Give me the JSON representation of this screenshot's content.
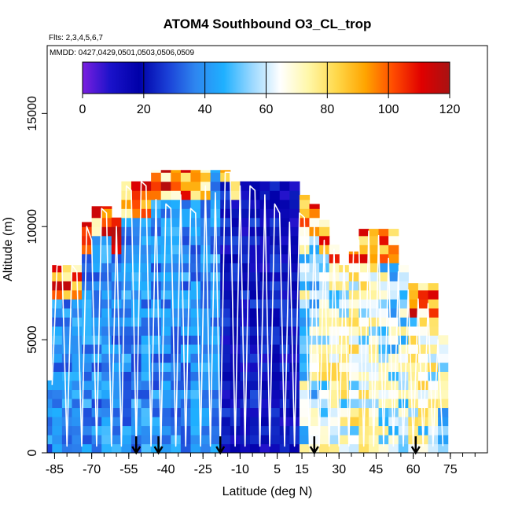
{
  "chart_data": {
    "type": "heatmap",
    "title": "ATOM4 Southbound O3_CL_trop",
    "flights_note": "Flts: 2,3,4,5,6,7",
    "dates_note": "MMDD: 0427,0429,0501,0503,0506,0509",
    "xlabel": "Latitude (deg N)",
    "ylabel": "Altitude (m)",
    "xlim": [
      -88,
      90
    ],
    "ylim": [
      0,
      18000
    ],
    "x_ticks": [
      -85,
      -70,
      -55,
      -40,
      -25,
      -10,
      5,
      15,
      30,
      45,
      60,
      75
    ],
    "x_tick_labels": [
      "-85",
      "-70",
      "-55",
      "-40",
      "-25",
      "-10",
      "5",
      "15",
      "30",
      "45",
      "60",
      "75"
    ],
    "y_ticks": [
      0,
      5000,
      10000,
      15000
    ],
    "y_tick_labels": [
      "0",
      "5000",
      "10000",
      "15000"
    ],
    "colorbar": {
      "min": 0,
      "max": 120,
      "ticks": [
        0,
        20,
        40,
        60,
        80,
        100,
        120
      ],
      "tick_labels": [
        "0",
        "20",
        "40",
        "60",
        "80",
        "100",
        "120"
      ],
      "colors": [
        "#7b1fe0",
        "#1a12c9",
        "#0000a8",
        "#1a3fd6",
        "#2e86f0",
        "#1fb0ff",
        "#9ad8ff",
        "#ffffff",
        "#fff7a8",
        "#ffd84a",
        "#ffa500",
        "#ff4b00",
        "#e00000",
        "#a81212"
      ]
    },
    "heatmap_columns": [
      {
        "lat": -86,
        "top": 3200,
        "regime": "blue",
        "cap": false
      },
      {
        "lat": -84,
        "top": 8300,
        "regime": "blue",
        "cap": true
      },
      {
        "lat": -80,
        "top": 8300,
        "regime": "blue",
        "cap": true
      },
      {
        "lat": -76,
        "top": 8300,
        "regime": "blue",
        "cap": true
      },
      {
        "lat": -72,
        "top": 10200,
        "regime": "blue",
        "cap": true
      },
      {
        "lat": -68,
        "top": 10900,
        "regime": "blue",
        "cap": true
      },
      {
        "lat": -64,
        "top": 10900,
        "regime": "blue",
        "cap": true
      },
      {
        "lat": -60,
        "top": 10400,
        "regime": "blue",
        "cap": true
      },
      {
        "lat": -56,
        "top": 12000,
        "regime": "blue",
        "cap": true
      },
      {
        "lat": -52,
        "top": 12000,
        "regime": "blue",
        "cap": true
      },
      {
        "lat": -48,
        "top": 12000,
        "regime": "blue",
        "cap": true
      },
      {
        "lat": -44,
        "top": 12500,
        "regime": "blue",
        "cap": true
      },
      {
        "lat": -40,
        "top": 12500,
        "regime": "blue",
        "cap": true
      },
      {
        "lat": -36,
        "top": 12500,
        "regime": "blue",
        "cap": true
      },
      {
        "lat": -32,
        "top": 12500,
        "regime": "blue",
        "cap": true
      },
      {
        "lat": -28,
        "top": 12500,
        "regime": "blue",
        "cap": true
      },
      {
        "lat": -24,
        "top": 12500,
        "regime": "blue",
        "cap": true
      },
      {
        "lat": -20,
        "top": 12500,
        "regime": "blue",
        "cap": false
      },
      {
        "lat": -16,
        "top": 12500,
        "regime": "deep",
        "cap": false
      },
      {
        "lat": -12,
        "top": 12000,
        "regime": "deep",
        "cap": false
      },
      {
        "lat": -8,
        "top": 12000,
        "regime": "deep",
        "cap": false
      },
      {
        "lat": -4,
        "top": 12000,
        "regime": "deep",
        "cap": false
      },
      {
        "lat": 0,
        "top": 12000,
        "regime": "deep",
        "cap": false
      },
      {
        "lat": 4,
        "top": 12000,
        "regime": "deep",
        "cap": false
      },
      {
        "lat": 8,
        "top": 12000,
        "regime": "deep",
        "cap": false
      },
      {
        "lat": 12,
        "top": 12000,
        "regime": "deep",
        "cap": false
      },
      {
        "lat": 16,
        "top": 11400,
        "regime": "mixed",
        "cap": true
      },
      {
        "lat": 20,
        "top": 11000,
        "regime": "mixed",
        "cap": true
      },
      {
        "lat": 24,
        "top": 10300,
        "regime": "yellow",
        "cap": true
      },
      {
        "lat": 28,
        "top": 9200,
        "regime": "yellow",
        "cap": true
      },
      {
        "lat": 32,
        "top": 8300,
        "regime": "yellow",
        "cap": false
      },
      {
        "lat": 36,
        "top": 8900,
        "regime": "yellow",
        "cap": true
      },
      {
        "lat": 40,
        "top": 9900,
        "regime": "yellow",
        "cap": true
      },
      {
        "lat": 44,
        "top": 9900,
        "regime": "yellow",
        "cap": true
      },
      {
        "lat": 48,
        "top": 9900,
        "regime": "mixed",
        "cap": true
      },
      {
        "lat": 52,
        "top": 9900,
        "regime": "mixed",
        "cap": true
      },
      {
        "lat": 56,
        "top": 8300,
        "regime": "mixed",
        "cap": false
      },
      {
        "lat": 60,
        "top": 7500,
        "regime": "yellow",
        "cap": true
      },
      {
        "lat": 64,
        "top": 7500,
        "regime": "yellow",
        "cap": true
      },
      {
        "lat": 68,
        "top": 7500,
        "regime": "yellow",
        "cap": true
      },
      {
        "lat": 72,
        "top": 5200,
        "regime": "mixed",
        "cap": false
      }
    ],
    "flight_track": [
      [
        -86,
        3000
      ],
      [
        -84,
        8300
      ],
      [
        -82,
        8300
      ],
      [
        -80,
        300
      ],
      [
        -78,
        8300
      ],
      [
        -76,
        8000
      ],
      [
        -74,
        300
      ],
      [
        -72,
        10000
      ],
      [
        -70,
        9400
      ],
      [
        -68,
        300
      ],
      [
        -66,
        10800
      ],
      [
        -64,
        10600
      ],
      [
        -62,
        300
      ],
      [
        -60,
        10000
      ],
      [
        -58,
        300
      ],
      [
        -56,
        11800
      ],
      [
        -54,
        11600
      ],
      [
        -52,
        300
      ],
      [
        -50,
        12000
      ],
      [
        -48,
        11800
      ],
      [
        -46,
        300
      ],
      [
        -44,
        11200
      ],
      [
        -42,
        300
      ],
      [
        -40,
        11000
      ],
      [
        -38,
        10800
      ],
      [
        -36,
        300
      ],
      [
        -34,
        11400
      ],
      [
        -32,
        300
      ],
      [
        -30,
        10800
      ],
      [
        -28,
        10600
      ],
      [
        -26,
        300
      ],
      [
        -24,
        11800
      ],
      [
        -22,
        300
      ],
      [
        -20,
        11500
      ],
      [
        -18,
        300
      ],
      [
        -16,
        12400
      ],
      [
        -14,
        12400
      ],
      [
        -12,
        300
      ],
      [
        -10,
        11800
      ],
      [
        -8,
        300
      ],
      [
        -6,
        11800
      ],
      [
        -4,
        11600
      ],
      [
        -2,
        300
      ],
      [
        0,
        11400
      ],
      [
        2,
        300
      ],
      [
        4,
        11000
      ],
      [
        6,
        10600
      ],
      [
        8,
        300
      ],
      [
        10,
        10200
      ],
      [
        12,
        300
      ],
      [
        14,
        10600
      ],
      [
        16,
        10400
      ],
      [
        18,
        300
      ],
      [
        20,
        10000
      ],
      [
        22,
        300
      ],
      [
        24,
        9400
      ],
      [
        26,
        300
      ],
      [
        28,
        9000
      ],
      [
        30,
        300
      ],
      [
        32,
        8800
      ],
      [
        34,
        300
      ],
      [
        36,
        9600
      ],
      [
        38,
        9400
      ],
      [
        40,
        300
      ],
      [
        42,
        9800
      ],
      [
        44,
        300
      ],
      [
        46,
        9600
      ],
      [
        48,
        300
      ],
      [
        50,
        8600
      ],
      [
        52,
        300
      ],
      [
        54,
        8000
      ],
      [
        56,
        300
      ],
      [
        58,
        7200
      ],
      [
        60,
        300
      ],
      [
        62,
        6800
      ],
      [
        64,
        300
      ],
      [
        66,
        6600
      ],
      [
        68,
        300
      ],
      [
        70,
        5000
      ],
      [
        72,
        300
      ]
    ],
    "arrow_markers_lat": [
      -52,
      -43,
      -18,
      20,
      61
    ]
  }
}
